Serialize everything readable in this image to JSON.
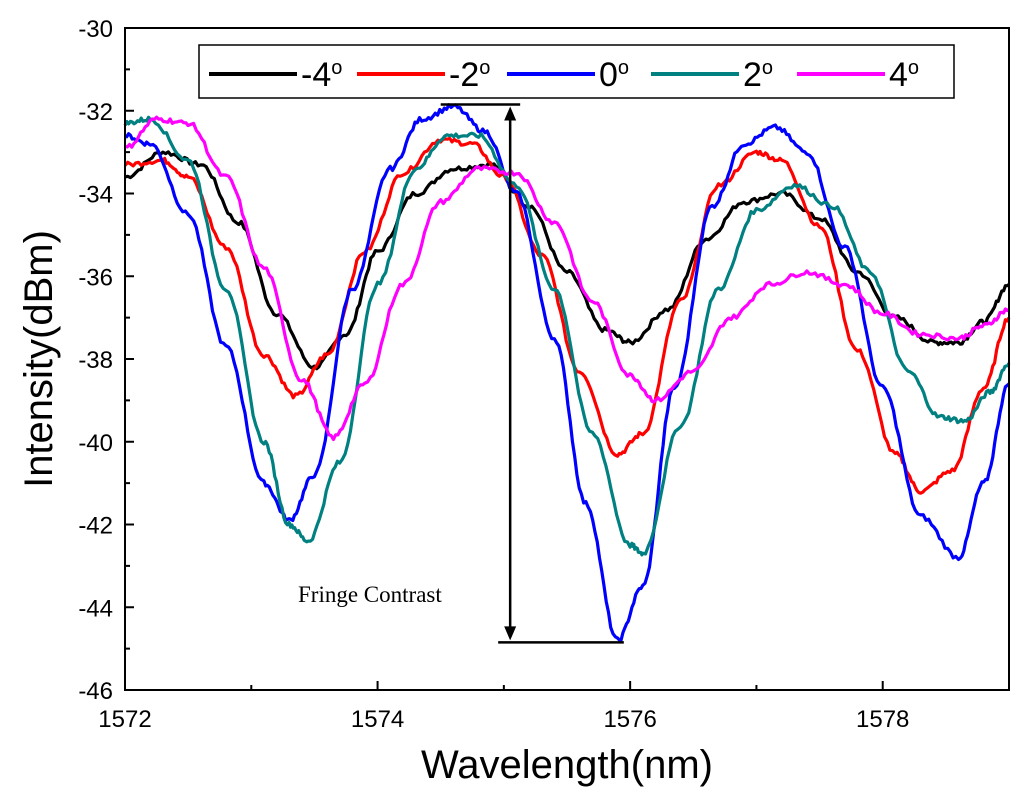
{
  "chart_data": {
    "type": "line",
    "xlabel": "Wavelength(nm)",
    "ylabel": "Intensity(dBm)",
    "xlim": [
      1572,
      1579
    ],
    "ylim": [
      -46,
      -30
    ],
    "xticks": [
      1572,
      1574,
      1576,
      1578
    ],
    "yticks": [
      -30,
      -32,
      -34,
      -36,
      -38,
      -40,
      -42,
      -44,
      -46
    ],
    "legend_position": "top",
    "annotation": "Fringe Contrast",
    "annotation_range": {
      "x": 1575.05,
      "y_top": -31.85,
      "y_bottom": -44.85,
      "x_from": 1574.5,
      "x_to": 1575.95
    },
    "series": [
      {
        "name": "-4",
        "unit": "o",
        "color": "#000000",
        "points": [
          [
            1572.0,
            -33.6
          ],
          [
            1572.3,
            -33.0
          ],
          [
            1572.6,
            -33.3
          ],
          [
            1572.9,
            -34.7
          ],
          [
            1573.2,
            -36.9
          ],
          [
            1573.5,
            -38.2
          ],
          [
            1573.75,
            -37.4
          ],
          [
            1574.0,
            -35.4
          ],
          [
            1574.3,
            -34.0
          ],
          [
            1574.6,
            -33.4
          ],
          [
            1574.9,
            -33.3
          ],
          [
            1575.2,
            -34.3
          ],
          [
            1575.5,
            -35.9
          ],
          [
            1575.8,
            -37.3
          ],
          [
            1576.0,
            -37.6
          ],
          [
            1576.3,
            -36.8
          ],
          [
            1576.6,
            -35.1
          ],
          [
            1576.9,
            -34.2
          ],
          [
            1577.2,
            -34.0
          ],
          [
            1577.5,
            -34.6
          ],
          [
            1577.8,
            -35.9
          ],
          [
            1578.1,
            -37.0
          ],
          [
            1578.4,
            -37.6
          ],
          [
            1578.6,
            -37.6
          ],
          [
            1578.8,
            -37.1
          ],
          [
            1579.0,
            -36.2
          ]
        ]
      },
      {
        "name": "-2",
        "unit": "o",
        "color": "#ff0000",
        "points": [
          [
            1572.0,
            -33.3
          ],
          [
            1572.3,
            -33.2
          ],
          [
            1572.5,
            -33.6
          ],
          [
            1572.8,
            -35.3
          ],
          [
            1573.1,
            -37.9
          ],
          [
            1573.35,
            -38.9
          ],
          [
            1573.6,
            -37.9
          ],
          [
            1573.9,
            -35.4
          ],
          [
            1574.2,
            -33.5
          ],
          [
            1574.5,
            -32.7
          ],
          [
            1574.75,
            -32.8
          ],
          [
            1575.0,
            -33.6
          ],
          [
            1575.3,
            -35.5
          ],
          [
            1575.6,
            -38.3
          ],
          [
            1575.9,
            -40.3
          ],
          [
            1576.1,
            -39.8
          ],
          [
            1576.4,
            -36.6
          ],
          [
            1576.7,
            -33.8
          ],
          [
            1577.0,
            -33.0
          ],
          [
            1577.2,
            -33.2
          ],
          [
            1577.5,
            -34.8
          ],
          [
            1577.8,
            -37.8
          ],
          [
            1578.1,
            -40.3
          ],
          [
            1578.3,
            -41.2
          ],
          [
            1578.55,
            -40.7
          ],
          [
            1578.8,
            -38.7
          ],
          [
            1579.0,
            -37.0
          ]
        ]
      },
      {
        "name": "0",
        "unit": "o",
        "color": "#0000ff",
        "points": [
          [
            1572.0,
            -32.6
          ],
          [
            1572.2,
            -32.8
          ],
          [
            1572.5,
            -34.5
          ],
          [
            1572.8,
            -37.7
          ],
          [
            1573.1,
            -41.0
          ],
          [
            1573.3,
            -41.9
          ],
          [
            1573.5,
            -40.8
          ],
          [
            1573.8,
            -36.3
          ],
          [
            1574.1,
            -33.4
          ],
          [
            1574.35,
            -32.2
          ],
          [
            1574.6,
            -31.9
          ],
          [
            1574.85,
            -32.5
          ],
          [
            1575.1,
            -34.0
          ],
          [
            1575.4,
            -37.5
          ],
          [
            1575.65,
            -41.5
          ],
          [
            1575.9,
            -44.8
          ],
          [
            1576.1,
            -43.5
          ],
          [
            1576.35,
            -38.7
          ],
          [
            1576.65,
            -34.3
          ],
          [
            1576.9,
            -32.8
          ],
          [
            1577.15,
            -32.4
          ],
          [
            1577.4,
            -33.0
          ],
          [
            1577.7,
            -35.3
          ],
          [
            1578.0,
            -38.7
          ],
          [
            1578.3,
            -41.8
          ],
          [
            1578.6,
            -42.8
          ],
          [
            1578.8,
            -41.0
          ],
          [
            1579.0,
            -38.6
          ]
        ]
      },
      {
        "name": "2",
        "unit": "o",
        "color": "#008080",
        "points": [
          [
            1572.0,
            -32.3
          ],
          [
            1572.2,
            -32.2
          ],
          [
            1572.5,
            -33.2
          ],
          [
            1572.8,
            -36.3
          ],
          [
            1573.1,
            -40.0
          ],
          [
            1573.3,
            -42.0
          ],
          [
            1573.45,
            -42.4
          ],
          [
            1573.7,
            -40.5
          ],
          [
            1574.0,
            -36.2
          ],
          [
            1574.3,
            -33.4
          ],
          [
            1574.55,
            -32.6
          ],
          [
            1574.8,
            -32.6
          ],
          [
            1575.1,
            -33.8
          ],
          [
            1575.4,
            -36.3
          ],
          [
            1575.7,
            -39.8
          ],
          [
            1576.0,
            -42.5
          ],
          [
            1576.1,
            -42.7
          ],
          [
            1576.4,
            -39.6
          ],
          [
            1576.7,
            -36.3
          ],
          [
            1577.0,
            -34.4
          ],
          [
            1577.3,
            -33.8
          ],
          [
            1577.6,
            -34.3
          ],
          [
            1577.9,
            -35.9
          ],
          [
            1578.2,
            -38.3
          ],
          [
            1578.45,
            -39.4
          ],
          [
            1578.65,
            -39.5
          ],
          [
            1578.85,
            -38.8
          ],
          [
            1579.0,
            -38.1
          ]
        ]
      },
      {
        "name": "4",
        "unit": "o",
        "color": "#ff00ff",
        "points": [
          [
            1572.0,
            -32.9
          ],
          [
            1572.25,
            -32.2
          ],
          [
            1572.5,
            -32.3
          ],
          [
            1572.8,
            -33.6
          ],
          [
            1573.1,
            -35.8
          ],
          [
            1573.4,
            -38.5
          ],
          [
            1573.65,
            -39.9
          ],
          [
            1573.9,
            -38.6
          ],
          [
            1574.2,
            -36.2
          ],
          [
            1574.5,
            -34.2
          ],
          [
            1574.8,
            -33.4
          ],
          [
            1575.1,
            -33.5
          ],
          [
            1575.4,
            -34.7
          ],
          [
            1575.7,
            -36.6
          ],
          [
            1576.0,
            -38.4
          ],
          [
            1576.2,
            -39.0
          ],
          [
            1576.5,
            -38.3
          ],
          [
            1576.8,
            -37.0
          ],
          [
            1577.1,
            -36.2
          ],
          [
            1577.4,
            -35.9
          ],
          [
            1577.7,
            -36.2
          ],
          [
            1578.0,
            -36.9
          ],
          [
            1578.3,
            -37.4
          ],
          [
            1578.6,
            -37.5
          ],
          [
            1578.8,
            -37.2
          ],
          [
            1579.0,
            -36.8
          ]
        ]
      }
    ]
  }
}
